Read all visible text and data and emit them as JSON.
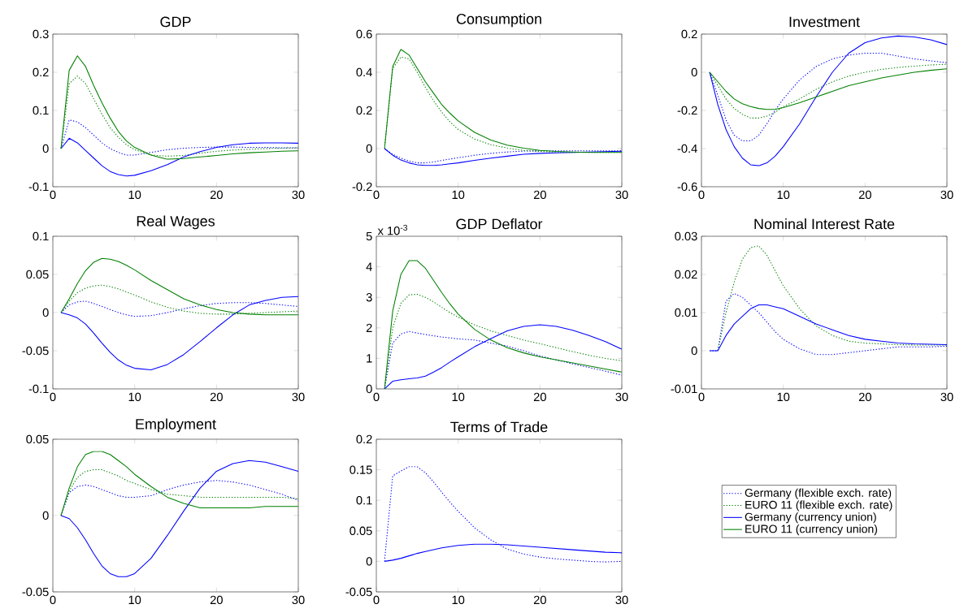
{
  "chart_data": [
    {
      "type": "line",
      "title": "GDP",
      "x": [
        1,
        2,
        3,
        4,
        5,
        6,
        7,
        8,
        9,
        10,
        12,
        14,
        16,
        18,
        20,
        22,
        24,
        26,
        28,
        30
      ],
      "xlim": [
        0,
        30
      ],
      "xticks": [
        0,
        10,
        20,
        30
      ],
      "ylim": [
        -0.1,
        0.3
      ],
      "yticks": [
        -0.1,
        0,
        0.1,
        0.2,
        0.3
      ],
      "series": [
        {
          "color": "#0000ff",
          "line_style": "dotted",
          "values": [
            0,
            0.075,
            0.07,
            0.055,
            0.035,
            0.015,
            0.0,
            -0.01,
            -0.017,
            -0.017,
            -0.01,
            -0.003,
            0.001,
            0.003,
            0.004,
            0.004,
            0.003,
            0.003,
            0.002,
            0.002
          ]
        },
        {
          "color": "#008000",
          "line_style": "dotted",
          "values": [
            0,
            0.17,
            0.19,
            0.17,
            0.13,
            0.09,
            0.055,
            0.03,
            0.01,
            -0.003,
            -0.017,
            -0.02,
            -0.018,
            -0.012,
            -0.007,
            -0.004,
            -0.002,
            0,
            0.001,
            0.002
          ]
        },
        {
          "color": "#0000ff",
          "line_style": "solid",
          "values": [
            0,
            0.027,
            0.015,
            -0.005,
            -0.025,
            -0.045,
            -0.06,
            -0.068,
            -0.072,
            -0.07,
            -0.058,
            -0.042,
            -0.022,
            -0.008,
            0.003,
            0.01,
            0.014,
            0.015,
            0.015,
            0.014
          ]
        },
        {
          "color": "#008000",
          "line_style": "solid",
          "values": [
            0,
            0.205,
            0.243,
            0.215,
            0.165,
            0.12,
            0.08,
            0.045,
            0.02,
            0.003,
            -0.017,
            -0.028,
            -0.026,
            -0.022,
            -0.018,
            -0.014,
            -0.011,
            -0.009,
            -0.007,
            -0.006
          ]
        }
      ]
    },
    {
      "type": "line",
      "title": "Consumption",
      "x": [
        1,
        2,
        3,
        4,
        5,
        6,
        7,
        8,
        9,
        10,
        12,
        14,
        16,
        18,
        20,
        22,
        24,
        26,
        28,
        30
      ],
      "xlim": [
        0,
        30
      ],
      "xticks": [
        0,
        10,
        20,
        30
      ],
      "ylim": [
        -0.2,
        0.6
      ],
      "yticks": [
        -0.2,
        0,
        0.2,
        0.4,
        0.6
      ],
      "series": [
        {
          "color": "#0000ff",
          "line_style": "dotted",
          "values": [
            0,
            -0.03,
            -0.05,
            -0.065,
            -0.075,
            -0.075,
            -0.07,
            -0.062,
            -0.055,
            -0.048,
            -0.035,
            -0.025,
            -0.018,
            -0.013,
            -0.012,
            -0.012,
            -0.012,
            -0.012,
            -0.012,
            -0.012
          ]
        },
        {
          "color": "#008000",
          "line_style": "dotted",
          "values": [
            0,
            0.42,
            0.48,
            0.47,
            0.4,
            0.32,
            0.25,
            0.19,
            0.14,
            0.1,
            0.05,
            0.02,
            0.003,
            -0.01,
            -0.015,
            -0.018,
            -0.02,
            -0.02,
            -0.02,
            -0.02
          ]
        },
        {
          "color": "#0000ff",
          "line_style": "solid",
          "values": [
            0,
            -0.035,
            -0.06,
            -0.075,
            -0.085,
            -0.088,
            -0.088,
            -0.085,
            -0.08,
            -0.075,
            -0.062,
            -0.05,
            -0.04,
            -0.03,
            -0.025,
            -0.022,
            -0.02,
            -0.018,
            -0.016,
            -0.014
          ]
        },
        {
          "color": "#008000",
          "line_style": "solid",
          "values": [
            0,
            0.43,
            0.52,
            0.49,
            0.42,
            0.35,
            0.29,
            0.23,
            0.185,
            0.145,
            0.085,
            0.045,
            0.018,
            0.002,
            -0.01,
            -0.015,
            -0.018,
            -0.02,
            -0.02,
            -0.02
          ]
        }
      ]
    },
    {
      "type": "line",
      "title": "Investment",
      "x": [
        1,
        2,
        3,
        4,
        5,
        6,
        7,
        8,
        9,
        10,
        12,
        14,
        16,
        18,
        20,
        22,
        24,
        26,
        28,
        30
      ],
      "xlim": [
        0,
        30
      ],
      "xticks": [
        0,
        10,
        20,
        30
      ],
      "ylim": [
        -0.6,
        0.2
      ],
      "yticks": [
        -0.6,
        -0.4,
        -0.2,
        0,
        0.2
      ],
      "series": [
        {
          "color": "#0000ff",
          "line_style": "dotted",
          "values": [
            0,
            -0.12,
            -0.25,
            -0.33,
            -0.36,
            -0.36,
            -0.33,
            -0.27,
            -0.2,
            -0.14,
            -0.04,
            0.03,
            0.07,
            0.09,
            0.1,
            0.1,
            0.085,
            0.07,
            0.06,
            0.05
          ]
        },
        {
          "color": "#008000",
          "line_style": "dotted",
          "values": [
            0,
            -0.07,
            -0.14,
            -0.19,
            -0.22,
            -0.24,
            -0.24,
            -0.23,
            -0.21,
            -0.18,
            -0.14,
            -0.09,
            -0.05,
            -0.02,
            0,
            0.015,
            0.025,
            0.032,
            0.038,
            0.042
          ]
        },
        {
          "color": "#0000ff",
          "line_style": "solid",
          "values": [
            0,
            -0.17,
            -0.3,
            -0.39,
            -0.45,
            -0.485,
            -0.49,
            -0.475,
            -0.44,
            -0.39,
            -0.27,
            -0.13,
            0.0,
            0.1,
            0.155,
            0.18,
            0.19,
            0.185,
            0.17,
            0.145
          ]
        },
        {
          "color": "#008000",
          "line_style": "solid",
          "values": [
            0,
            -0.05,
            -0.1,
            -0.14,
            -0.165,
            -0.18,
            -0.19,
            -0.195,
            -0.195,
            -0.185,
            -0.16,
            -0.13,
            -0.1,
            -0.07,
            -0.05,
            -0.03,
            -0.015,
            0,
            0.01,
            0.018
          ]
        }
      ]
    },
    {
      "type": "line",
      "title": "Real Wages",
      "x": [
        1,
        2,
        3,
        4,
        5,
        6,
        7,
        8,
        9,
        10,
        12,
        14,
        16,
        18,
        20,
        22,
        24,
        26,
        28,
        30
      ],
      "xlim": [
        0,
        30
      ],
      "xticks": [
        0,
        10,
        20,
        30
      ],
      "ylim": [
        -0.1,
        0.1
      ],
      "yticks": [
        -0.1,
        -0.05,
        0,
        0.05,
        0.1
      ],
      "series": [
        {
          "color": "#0000ff",
          "line_style": "dotted",
          "values": [
            0,
            0.01,
            0.014,
            0.015,
            0.012,
            0.008,
            0.004,
            0.0,
            -0.003,
            -0.005,
            -0.004,
            0.0,
            0.005,
            0.009,
            0.012,
            0.013,
            0.013,
            0.012,
            0.01,
            0.008
          ]
        },
        {
          "color": "#008000",
          "line_style": "dotted",
          "values": [
            0,
            0.015,
            0.026,
            0.032,
            0.035,
            0.036,
            0.034,
            0.031,
            0.027,
            0.023,
            0.014,
            0.007,
            0.002,
            -0.001,
            -0.002,
            -0.002,
            -0.001,
            0,
            0.001,
            0.002
          ]
        },
        {
          "color": "#0000ff",
          "line_style": "solid",
          "values": [
            0,
            -0.003,
            -0.007,
            -0.015,
            -0.027,
            -0.04,
            -0.052,
            -0.062,
            -0.069,
            -0.073,
            -0.075,
            -0.068,
            -0.055,
            -0.038,
            -0.02,
            -0.003,
            0.01,
            0.016,
            0.02,
            0.021
          ]
        },
        {
          "color": "#008000",
          "line_style": "solid",
          "values": [
            0,
            0.018,
            0.038,
            0.055,
            0.066,
            0.071,
            0.07,
            0.067,
            0.062,
            0.056,
            0.042,
            0.03,
            0.018,
            0.01,
            0.004,
            0.0,
            -0.002,
            -0.003,
            -0.003,
            -0.003
          ]
        }
      ]
    },
    {
      "type": "line",
      "title": "GDP Deflator",
      "annotations": [
        "x 10$^{-3}$"
      ],
      "x": [
        1,
        2,
        3,
        4,
        5,
        6,
        7,
        8,
        9,
        10,
        12,
        14,
        16,
        18,
        20,
        22,
        24,
        26,
        28,
        30
      ],
      "xlim": [
        0,
        30
      ],
      "xticks": [
        0,
        10,
        20,
        30
      ],
      "ylim": [
        0,
        5
      ],
      "yticks": [
        0,
        1,
        2,
        3,
        4,
        5
      ],
      "series": [
        {
          "color": "#0000ff",
          "line_style": "dotted",
          "values": [
            0,
            1.5,
            1.8,
            1.88,
            1.83,
            1.78,
            1.74,
            1.7,
            1.67,
            1.64,
            1.6,
            1.5,
            1.4,
            1.25,
            1.08,
            0.95,
            0.82,
            0.7,
            0.58,
            0.45
          ]
        },
        {
          "color": "#008000",
          "line_style": "dotted",
          "values": [
            0,
            2.0,
            2.8,
            3.08,
            3.1,
            3.0,
            2.85,
            2.67,
            2.5,
            2.35,
            2.1,
            1.9,
            1.75,
            1.6,
            1.48,
            1.35,
            1.22,
            1.1,
            1.0,
            0.92
          ]
        },
        {
          "color": "#0000ff",
          "line_style": "solid",
          "values": [
            0,
            0.25,
            0.3,
            0.33,
            0.36,
            0.42,
            0.55,
            0.7,
            0.88,
            1.05,
            1.38,
            1.65,
            1.9,
            2.05,
            2.1,
            2.05,
            1.92,
            1.75,
            1.55,
            1.3
          ]
        },
        {
          "color": "#008000",
          "line_style": "solid",
          "values": [
            0,
            2.55,
            3.75,
            4.2,
            4.2,
            3.95,
            3.55,
            3.15,
            2.78,
            2.45,
            1.95,
            1.6,
            1.35,
            1.18,
            1.05,
            0.95,
            0.85,
            0.75,
            0.65,
            0.55
          ]
        }
      ]
    },
    {
      "type": "line",
      "title": "Nominal Interest Rate",
      "x": [
        1,
        2,
        3,
        4,
        5,
        6,
        7,
        8,
        9,
        10,
        12,
        14,
        16,
        18,
        20,
        22,
        24,
        26,
        28,
        30
      ],
      "xlim": [
        0,
        30
      ],
      "xticks": [
        0,
        10,
        20,
        30
      ],
      "ylim": [
        -0.01,
        0.03
      ],
      "yticks": [
        -0.01,
        0,
        0.01,
        0.02,
        0.03
      ],
      "series": [
        {
          "color": "#0000ff",
          "line_style": "dotted",
          "values": [
            0,
            0,
            0.013,
            0.015,
            0.014,
            0.012,
            0.01,
            0.0075,
            0.005,
            0.003,
            0.0005,
            -0.001,
            -0.001,
            -0.0005,
            0,
            0.0005,
            0.001,
            0.001,
            0.001,
            0.0012
          ]
        },
        {
          "color": "#008000",
          "line_style": "dotted",
          "values": [
            null,
            0,
            0.01,
            0.018,
            0.024,
            0.027,
            0.0275,
            0.025,
            0.021,
            0.017,
            0.011,
            0.0065,
            0.004,
            0.0025,
            0.002,
            0.0018,
            0.0016,
            0.0015,
            0.0015,
            0.0015
          ]
        },
        {
          "color": "#0000ff",
          "line_style": "solid",
          "values": [
            0,
            0,
            0.004,
            0.007,
            0.009,
            0.011,
            0.012,
            0.012,
            0.0115,
            0.011,
            0.009,
            0.007,
            0.0055,
            0.004,
            0.003,
            0.0025,
            0.002,
            0.0018,
            0.0017,
            0.0016
          ]
        }
      ]
    },
    {
      "type": "line",
      "title": "Employment",
      "legend": "right",
      "x": [
        1,
        2,
        3,
        4,
        5,
        6,
        7,
        8,
        9,
        10,
        12,
        14,
        16,
        18,
        20,
        22,
        24,
        26,
        28,
        30
      ],
      "xlim": [
        0,
        30
      ],
      "xticks": [
        0,
        10,
        20,
        30
      ],
      "ylim": [
        -0.05,
        0.05
      ],
      "yticks": [
        -0.05,
        0,
        0.05
      ],
      "series": [
        {
          "name": "Germany (flexible exch. rate)",
          "color": "#0000ff",
          "line_style": "dotted",
          "values": [
            0,
            0.015,
            0.019,
            0.02,
            0.019,
            0.017,
            0.015,
            0.013,
            0.012,
            0.012,
            0.013,
            0.017,
            0.02,
            0.022,
            0.023,
            0.022,
            0.02,
            0.017,
            0.014,
            0.01
          ]
        },
        {
          "name": "EURO 11 (flexible exch. rate)",
          "color": "#008000",
          "line_style": "dotted",
          "values": [
            0,
            0.016,
            0.025,
            0.029,
            0.03,
            0.03,
            0.028,
            0.026,
            0.023,
            0.021,
            0.017,
            0.014,
            0.013,
            0.012,
            0.012,
            0.012,
            0.012,
            0.012,
            0.012,
            0.011
          ]
        },
        {
          "name": "Germany (currency union)",
          "color": "#0000ff",
          "line_style": "solid",
          "values": [
            0,
            -0.002,
            -0.008,
            -0.016,
            -0.025,
            -0.033,
            -0.038,
            -0.04,
            -0.04,
            -0.038,
            -0.028,
            -0.013,
            0.003,
            0.018,
            0.029,
            0.034,
            0.036,
            0.035,
            0.032,
            0.029
          ]
        },
        {
          "name": "EURO 11 (currency union)",
          "color": "#008000",
          "line_style": "solid",
          "values": [
            0,
            0.018,
            0.032,
            0.04,
            0.042,
            0.042,
            0.04,
            0.036,
            0.032,
            0.027,
            0.019,
            0.012,
            0.008,
            0.005,
            0.005,
            0.005,
            0.005,
            0.006,
            0.006,
            0.006
          ]
        }
      ]
    },
    {
      "type": "line",
      "title": "Terms of Trade",
      "x": [
        1,
        2,
        3,
        4,
        5,
        6,
        7,
        8,
        9,
        10,
        12,
        14,
        16,
        18,
        20,
        22,
        24,
        26,
        28,
        30
      ],
      "xlim": [
        0,
        30
      ],
      "xticks": [
        0,
        10,
        20,
        30
      ],
      "ylim": [
        -0.05,
        0.2
      ],
      "yticks": [
        -0.05,
        0,
        0.05,
        0.1,
        0.15,
        0.2
      ],
      "series": [
        {
          "color": "#0000ff",
          "line_style": "dotted",
          "values": [
            0,
            0.14,
            0.148,
            0.155,
            0.155,
            0.145,
            0.13,
            0.113,
            0.097,
            0.082,
            0.055,
            0.035,
            0.02,
            0.012,
            0.007,
            0.004,
            0.002,
            0.0,
            -0.001,
            0.0
          ]
        },
        {
          "color": "#0000ff",
          "line_style": "solid",
          "values": [
            0,
            0.002,
            0.005,
            0.009,
            0.013,
            0.016,
            0.019,
            0.022,
            0.024,
            0.026,
            0.028,
            0.028,
            0.027,
            0.025,
            0.023,
            0.021,
            0.019,
            0.017,
            0.015,
            0.014
          ]
        }
      ]
    }
  ]
}
